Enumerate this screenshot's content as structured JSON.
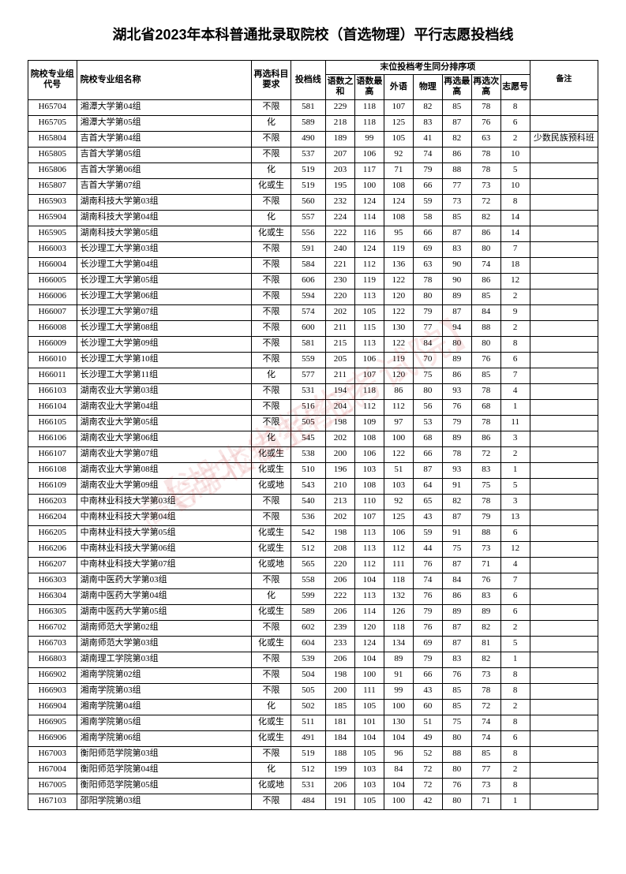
{
  "title": "湖北省2023年本科普通批录取院校（首选物理）平行志愿投档线",
  "headers": {
    "code": "院校专业组代号",
    "name": "院校专业组名称",
    "req": "再选科目要求",
    "score": "投档线",
    "subgroup": "末位投档考生同分排序项",
    "sub1": "语数之和",
    "sub2": "语数最高",
    "sub3": "外语",
    "sub4": "物理",
    "sub5": "再选最高",
    "sub6": "再选次高",
    "sub7": "志愿号",
    "remark": "备注"
  },
  "rows": [
    {
      "code": "H65704",
      "name": "湘潭大学第04组",
      "req": "不限",
      "score": "581",
      "s1": "229",
      "s2": "118",
      "s3": "107",
      "s4": "82",
      "s5": "85",
      "s6": "78",
      "s7": "8",
      "remark": ""
    },
    {
      "code": "H65705",
      "name": "湘潭大学第05组",
      "req": "化",
      "score": "589",
      "s1": "218",
      "s2": "118",
      "s3": "125",
      "s4": "83",
      "s5": "87",
      "s6": "76",
      "s7": "6",
      "remark": ""
    },
    {
      "code": "H65804",
      "name": "吉首大学第04组",
      "req": "不限",
      "score": "490",
      "s1": "189",
      "s2": "99",
      "s3": "105",
      "s4": "41",
      "s5": "82",
      "s6": "63",
      "s7": "2",
      "remark": "少数民族预科班"
    },
    {
      "code": "H65805",
      "name": "吉首大学第05组",
      "req": "不限",
      "score": "537",
      "s1": "207",
      "s2": "106",
      "s3": "92",
      "s4": "74",
      "s5": "86",
      "s6": "78",
      "s7": "10",
      "remark": ""
    },
    {
      "code": "H65806",
      "name": "吉首大学第06组",
      "req": "化",
      "score": "519",
      "s1": "203",
      "s2": "117",
      "s3": "71",
      "s4": "79",
      "s5": "88",
      "s6": "78",
      "s7": "5",
      "remark": ""
    },
    {
      "code": "H65807",
      "name": "吉首大学第07组",
      "req": "化或生",
      "score": "519",
      "s1": "195",
      "s2": "100",
      "s3": "108",
      "s4": "66",
      "s5": "77",
      "s6": "73",
      "s7": "10",
      "remark": ""
    },
    {
      "code": "H65903",
      "name": "湖南科技大学第03组",
      "req": "不限",
      "score": "560",
      "s1": "232",
      "s2": "124",
      "s3": "124",
      "s4": "59",
      "s5": "73",
      "s6": "72",
      "s7": "8",
      "remark": ""
    },
    {
      "code": "H65904",
      "name": "湖南科技大学第04组",
      "req": "化",
      "score": "557",
      "s1": "224",
      "s2": "114",
      "s3": "108",
      "s4": "58",
      "s5": "85",
      "s6": "82",
      "s7": "14",
      "remark": ""
    },
    {
      "code": "H65905",
      "name": "湖南科技大学第05组",
      "req": "化或生",
      "score": "556",
      "s1": "222",
      "s2": "116",
      "s3": "95",
      "s4": "66",
      "s5": "87",
      "s6": "86",
      "s7": "14",
      "remark": ""
    },
    {
      "code": "H66003",
      "name": "长沙理工大学第03组",
      "req": "不限",
      "score": "591",
      "s1": "240",
      "s2": "124",
      "s3": "119",
      "s4": "69",
      "s5": "83",
      "s6": "80",
      "s7": "7",
      "remark": ""
    },
    {
      "code": "H66004",
      "name": "长沙理工大学第04组",
      "req": "不限",
      "score": "584",
      "s1": "221",
      "s2": "112",
      "s3": "136",
      "s4": "63",
      "s5": "90",
      "s6": "74",
      "s7": "18",
      "remark": ""
    },
    {
      "code": "H66005",
      "name": "长沙理工大学第05组",
      "req": "不限",
      "score": "606",
      "s1": "230",
      "s2": "119",
      "s3": "122",
      "s4": "78",
      "s5": "90",
      "s6": "86",
      "s7": "12",
      "remark": ""
    },
    {
      "code": "H66006",
      "name": "长沙理工大学第06组",
      "req": "不限",
      "score": "594",
      "s1": "220",
      "s2": "113",
      "s3": "120",
      "s4": "80",
      "s5": "89",
      "s6": "85",
      "s7": "2",
      "remark": ""
    },
    {
      "code": "H66007",
      "name": "长沙理工大学第07组",
      "req": "不限",
      "score": "574",
      "s1": "202",
      "s2": "105",
      "s3": "122",
      "s4": "79",
      "s5": "87",
      "s6": "84",
      "s7": "9",
      "remark": ""
    },
    {
      "code": "H66008",
      "name": "长沙理工大学第08组",
      "req": "不限",
      "score": "600",
      "s1": "211",
      "s2": "115",
      "s3": "130",
      "s4": "77",
      "s5": "94",
      "s6": "88",
      "s7": "2",
      "remark": ""
    },
    {
      "code": "H66009",
      "name": "长沙理工大学第09组",
      "req": "不限",
      "score": "581",
      "s1": "215",
      "s2": "113",
      "s3": "122",
      "s4": "84",
      "s5": "80",
      "s6": "80",
      "s7": "8",
      "remark": ""
    },
    {
      "code": "H66010",
      "name": "长沙理工大学第10组",
      "req": "不限",
      "score": "559",
      "s1": "205",
      "s2": "106",
      "s3": "119",
      "s4": "70",
      "s5": "89",
      "s6": "76",
      "s7": "6",
      "remark": ""
    },
    {
      "code": "H66011",
      "name": "长沙理工大学第11组",
      "req": "化",
      "score": "577",
      "s1": "211",
      "s2": "107",
      "s3": "120",
      "s4": "75",
      "s5": "86",
      "s6": "85",
      "s7": "7",
      "remark": ""
    },
    {
      "code": "H66103",
      "name": "湖南农业大学第03组",
      "req": "不限",
      "score": "531",
      "s1": "194",
      "s2": "118",
      "s3": "86",
      "s4": "80",
      "s5": "93",
      "s6": "78",
      "s7": "4",
      "remark": ""
    },
    {
      "code": "H66104",
      "name": "湖南农业大学第04组",
      "req": "不限",
      "score": "516",
      "s1": "204",
      "s2": "112",
      "s3": "112",
      "s4": "56",
      "s5": "76",
      "s6": "68",
      "s7": "1",
      "remark": ""
    },
    {
      "code": "H66105",
      "name": "湖南农业大学第05组",
      "req": "不限",
      "score": "505",
      "s1": "198",
      "s2": "109",
      "s3": "97",
      "s4": "53",
      "s5": "79",
      "s6": "78",
      "s7": "11",
      "remark": ""
    },
    {
      "code": "H66106",
      "name": "湖南农业大学第06组",
      "req": "化",
      "score": "545",
      "s1": "202",
      "s2": "108",
      "s3": "100",
      "s4": "68",
      "s5": "89",
      "s6": "86",
      "s7": "3",
      "remark": ""
    },
    {
      "code": "H66107",
      "name": "湖南农业大学第07组",
      "req": "化或生",
      "score": "538",
      "s1": "200",
      "s2": "106",
      "s3": "122",
      "s4": "66",
      "s5": "78",
      "s6": "72",
      "s7": "2",
      "remark": ""
    },
    {
      "code": "H66108",
      "name": "湖南农业大学第08组",
      "req": "化或生",
      "score": "510",
      "s1": "196",
      "s2": "103",
      "s3": "51",
      "s4": "87",
      "s5": "93",
      "s6": "83",
      "s7": "1",
      "remark": ""
    },
    {
      "code": "H66109",
      "name": "湖南农业大学第09组",
      "req": "化或地",
      "score": "543",
      "s1": "210",
      "s2": "108",
      "s3": "103",
      "s4": "64",
      "s5": "91",
      "s6": "75",
      "s7": "5",
      "remark": ""
    },
    {
      "code": "H66203",
      "name": "中南林业科技大学第03组",
      "req": "不限",
      "score": "540",
      "s1": "213",
      "s2": "110",
      "s3": "92",
      "s4": "65",
      "s5": "82",
      "s6": "78",
      "s7": "3",
      "remark": ""
    },
    {
      "code": "H66204",
      "name": "中南林业科技大学第04组",
      "req": "不限",
      "score": "536",
      "s1": "202",
      "s2": "107",
      "s3": "125",
      "s4": "43",
      "s5": "87",
      "s6": "79",
      "s7": "13",
      "remark": ""
    },
    {
      "code": "H66205",
      "name": "中南林业科技大学第05组",
      "req": "化或生",
      "score": "542",
      "s1": "198",
      "s2": "113",
      "s3": "106",
      "s4": "59",
      "s5": "91",
      "s6": "88",
      "s7": "6",
      "remark": ""
    },
    {
      "code": "H66206",
      "name": "中南林业科技大学第06组",
      "req": "化或生",
      "score": "512",
      "s1": "208",
      "s2": "113",
      "s3": "112",
      "s4": "44",
      "s5": "75",
      "s6": "73",
      "s7": "12",
      "remark": ""
    },
    {
      "code": "H66207",
      "name": "中南林业科技大学第07组",
      "req": "化或地",
      "score": "565",
      "s1": "220",
      "s2": "112",
      "s3": "111",
      "s4": "76",
      "s5": "87",
      "s6": "71",
      "s7": "4",
      "remark": ""
    },
    {
      "code": "H66303",
      "name": "湖南中医药大学第03组",
      "req": "不限",
      "score": "558",
      "s1": "206",
      "s2": "104",
      "s3": "118",
      "s4": "74",
      "s5": "84",
      "s6": "76",
      "s7": "7",
      "remark": ""
    },
    {
      "code": "H66304",
      "name": "湖南中医药大学第04组",
      "req": "化",
      "score": "599",
      "s1": "222",
      "s2": "113",
      "s3": "132",
      "s4": "76",
      "s5": "86",
      "s6": "83",
      "s7": "6",
      "remark": ""
    },
    {
      "code": "H66305",
      "name": "湖南中医药大学第05组",
      "req": "化或生",
      "score": "589",
      "s1": "206",
      "s2": "114",
      "s3": "126",
      "s4": "79",
      "s5": "89",
      "s6": "89",
      "s7": "6",
      "remark": ""
    },
    {
      "code": "H66702",
      "name": "湖南师范大学第02组",
      "req": "不限",
      "score": "602",
      "s1": "239",
      "s2": "120",
      "s3": "118",
      "s4": "76",
      "s5": "87",
      "s6": "82",
      "s7": "2",
      "remark": ""
    },
    {
      "code": "H66703",
      "name": "湖南师范大学第03组",
      "req": "化或生",
      "score": "604",
      "s1": "233",
      "s2": "124",
      "s3": "134",
      "s4": "69",
      "s5": "87",
      "s6": "81",
      "s7": "5",
      "remark": ""
    },
    {
      "code": "H66803",
      "name": "湖南理工学院第03组",
      "req": "不限",
      "score": "539",
      "s1": "206",
      "s2": "104",
      "s3": "89",
      "s4": "79",
      "s5": "83",
      "s6": "82",
      "s7": "1",
      "remark": ""
    },
    {
      "code": "H66902",
      "name": "湘南学院第02组",
      "req": "不限",
      "score": "504",
      "s1": "198",
      "s2": "100",
      "s3": "91",
      "s4": "66",
      "s5": "76",
      "s6": "73",
      "s7": "8",
      "remark": ""
    },
    {
      "code": "H66903",
      "name": "湘南学院第03组",
      "req": "不限",
      "score": "505",
      "s1": "200",
      "s2": "111",
      "s3": "99",
      "s4": "43",
      "s5": "85",
      "s6": "78",
      "s7": "8",
      "remark": ""
    },
    {
      "code": "H66904",
      "name": "湘南学院第04组",
      "req": "化",
      "score": "502",
      "s1": "185",
      "s2": "105",
      "s3": "100",
      "s4": "60",
      "s5": "85",
      "s6": "72",
      "s7": "2",
      "remark": ""
    },
    {
      "code": "H66905",
      "name": "湘南学院第05组",
      "req": "化或生",
      "score": "511",
      "s1": "181",
      "s2": "101",
      "s3": "130",
      "s4": "51",
      "s5": "75",
      "s6": "74",
      "s7": "8",
      "remark": ""
    },
    {
      "code": "H66906",
      "name": "湘南学院第06组",
      "req": "化或生",
      "score": "491",
      "s1": "184",
      "s2": "104",
      "s3": "104",
      "s4": "49",
      "s5": "80",
      "s6": "74",
      "s7": "6",
      "remark": ""
    },
    {
      "code": "H67003",
      "name": "衡阳师范学院第03组",
      "req": "不限",
      "score": "519",
      "s1": "188",
      "s2": "105",
      "s3": "96",
      "s4": "52",
      "s5": "88",
      "s6": "85",
      "s7": "8",
      "remark": ""
    },
    {
      "code": "H67004",
      "name": "衡阳师范学院第04组",
      "req": "化",
      "score": "512",
      "s1": "199",
      "s2": "103",
      "s3": "84",
      "s4": "72",
      "s5": "80",
      "s6": "77",
      "s7": "2",
      "remark": ""
    },
    {
      "code": "H67005",
      "name": "衡阳师范学院第05组",
      "req": "化或地",
      "score": "531",
      "s1": "206",
      "s2": "103",
      "s3": "104",
      "s4": "72",
      "s5": "76",
      "s6": "73",
      "s7": "8",
      "remark": ""
    },
    {
      "code": "H67103",
      "name": "邵阳学院第03组",
      "req": "不限",
      "score": "484",
      "s1": "191",
      "s2": "105",
      "s3": "100",
      "s4": "42",
      "s5": "80",
      "s6": "71",
      "s7": "1",
      "remark": ""
    }
  ],
  "watermark1": "【湖北省招生考试院】",
  "watermark2": "高等学校招生考试"
}
